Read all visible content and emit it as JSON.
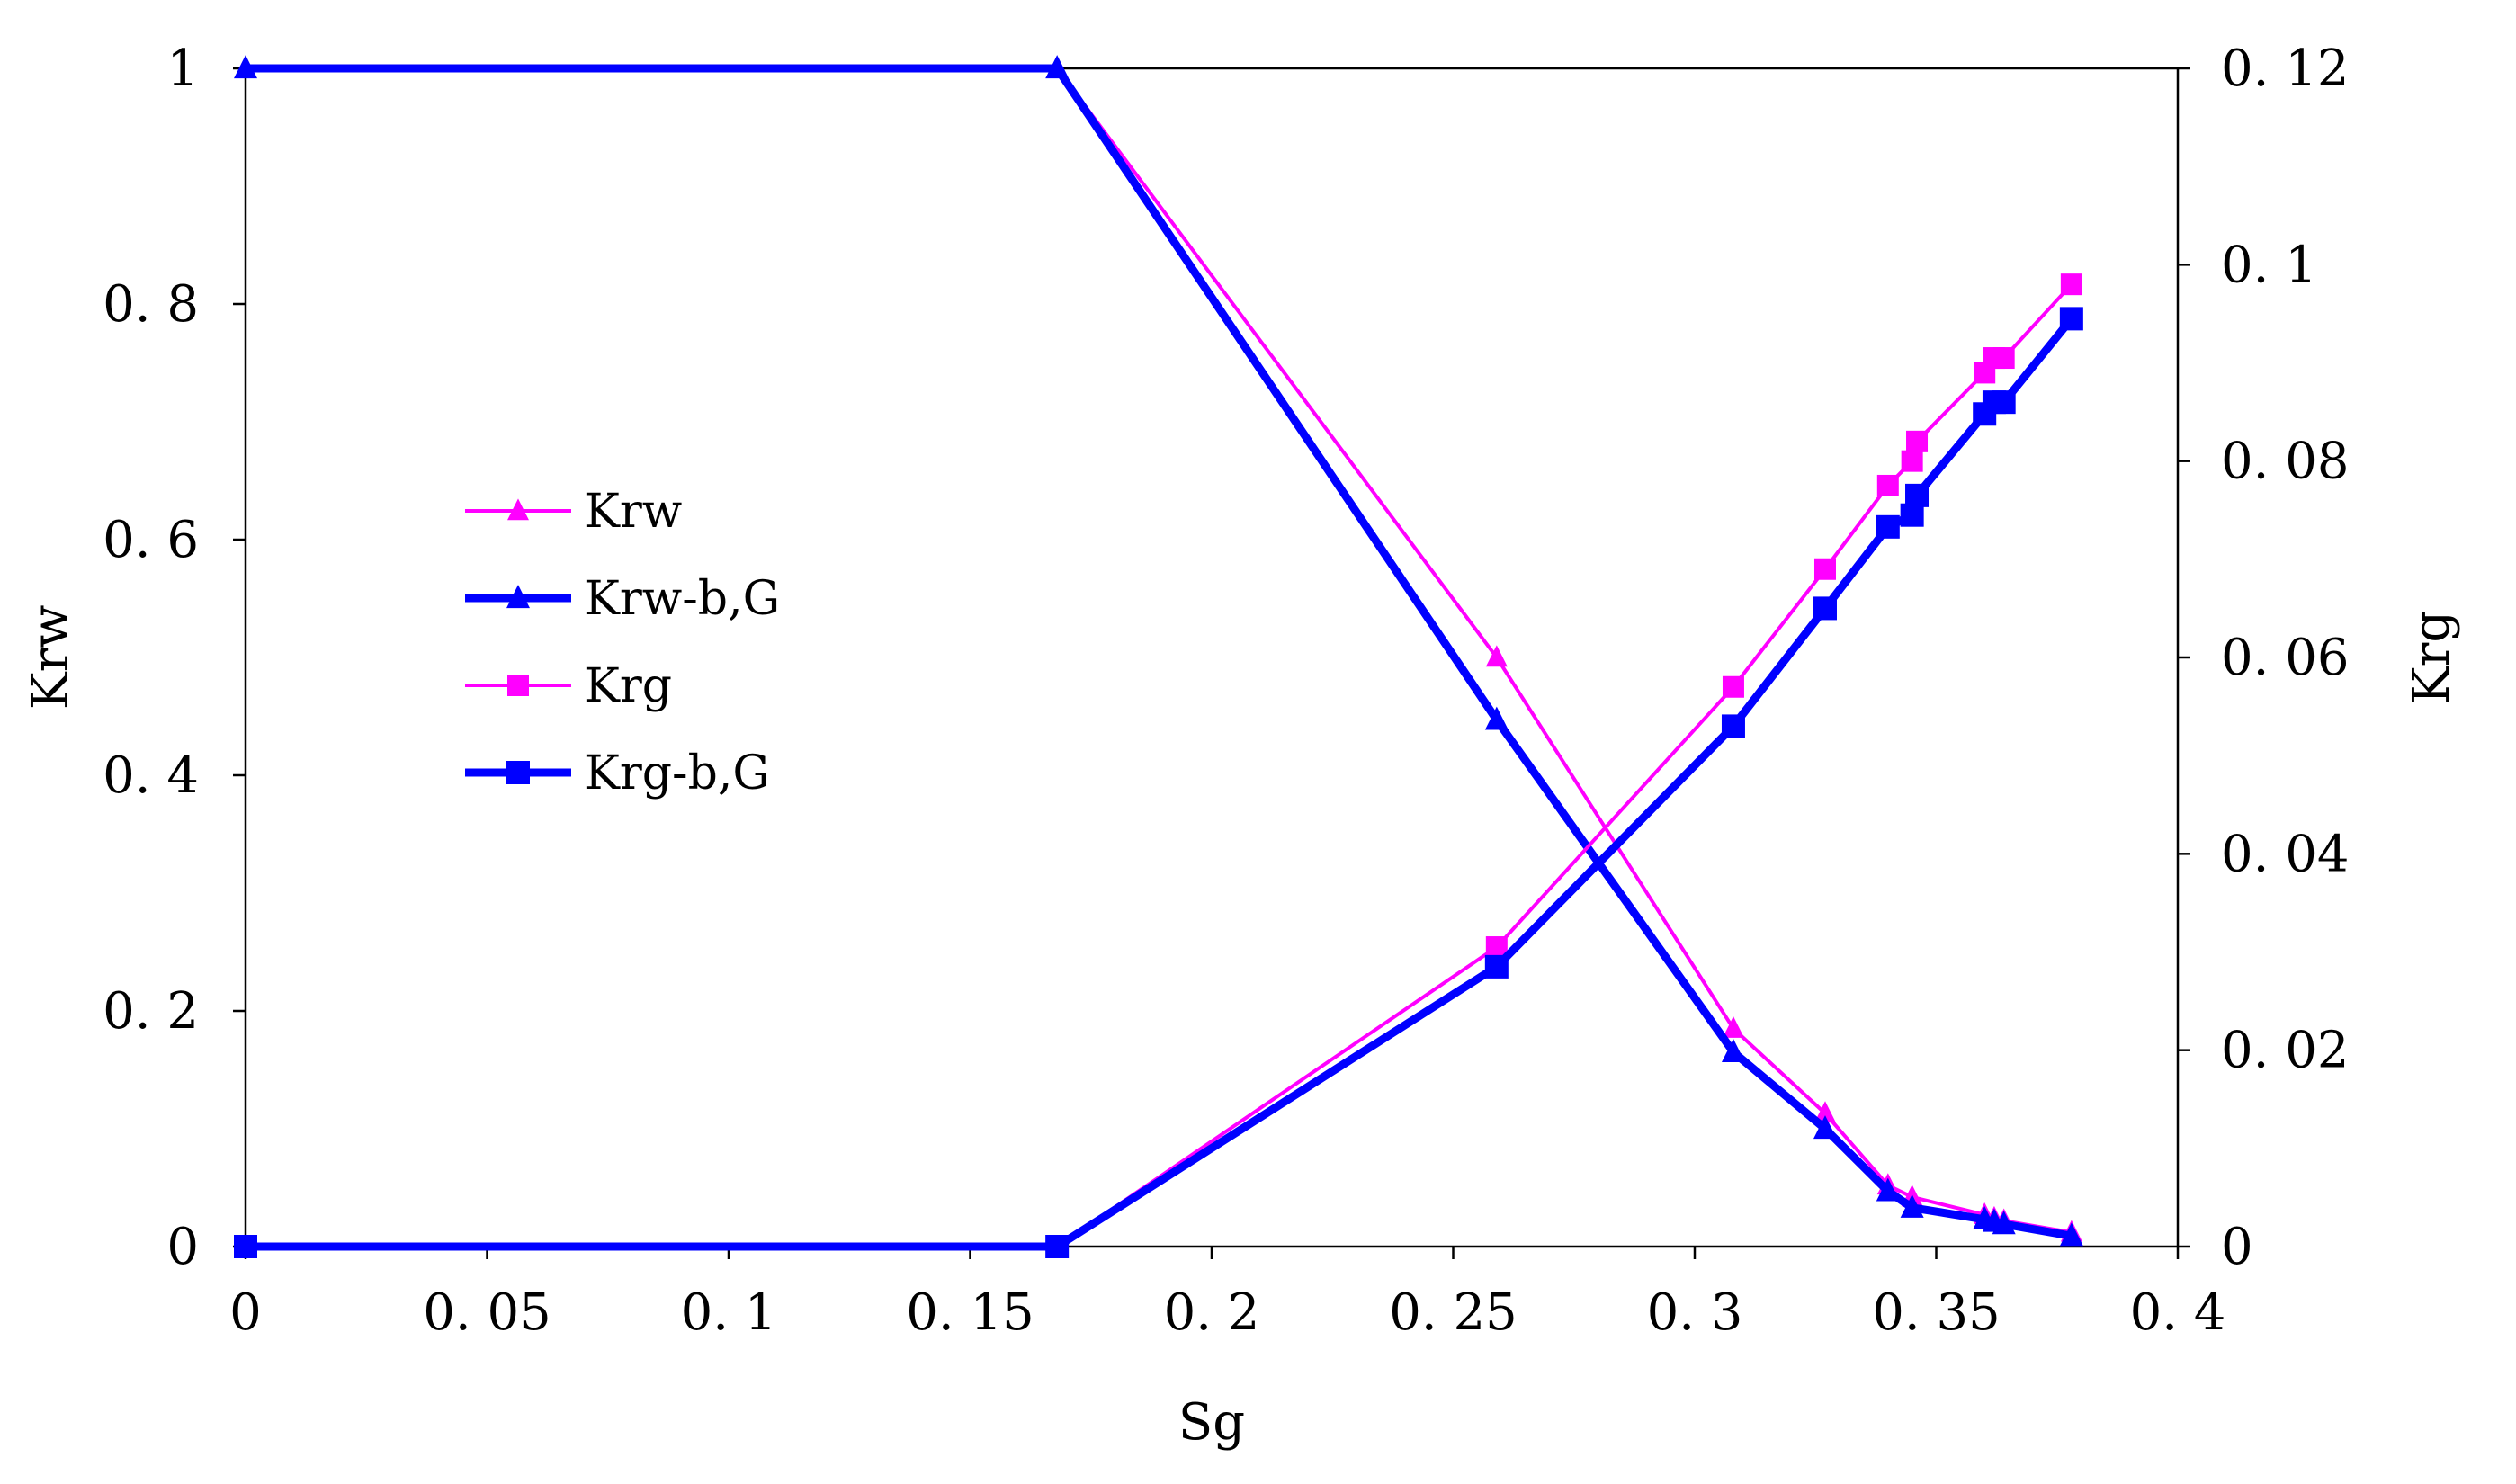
{
  "chart_data": {
    "type": "line",
    "xlabel": "Sg",
    "ylabel": "Krw",
    "y2label": "Krg",
    "xlim": [
      0,
      0.4
    ],
    "ylim": [
      0,
      1
    ],
    "y2lim": [
      0,
      0.12
    ],
    "x_ticks": [
      "0",
      "0. 05",
      "0. 1",
      "0. 15",
      "0. 2",
      "0. 25",
      "0. 3",
      "0. 35",
      "0. 4"
    ],
    "y_ticks": [
      "0",
      "0. 2",
      "0. 4",
      "0. 6",
      "0. 8",
      "1"
    ],
    "y2_ticks": [
      "0",
      "0. 02",
      "0. 04",
      "0. 06",
      "0. 08",
      "0. 1",
      "0. 12"
    ],
    "grid": false,
    "legend_position": "left-middle",
    "series": [
      {
        "name": "Krw",
        "axis": "left",
        "marker": "triangle",
        "color": "#FF00FF",
        "thick": false,
        "x": [
          0,
          0.168,
          0.259,
          0.308,
          0.327,
          0.34,
          0.345,
          0.36,
          0.362,
          0.364,
          0.378
        ],
        "y": [
          1.0,
          1.0,
          0.5,
          0.185,
          0.113,
          0.052,
          0.042,
          0.027,
          0.024,
          0.022,
          0.012
        ]
      },
      {
        "name": "Krw-b,G",
        "axis": "left",
        "marker": "triangle",
        "color": "#0000FF",
        "thick": true,
        "x": [
          0,
          0.168,
          0.259,
          0.308,
          0.327,
          0.34,
          0.345,
          0.36,
          0.362,
          0.364,
          0.378
        ],
        "y": [
          1.0,
          1.0,
          0.447,
          0.165,
          0.1,
          0.047,
          0.033,
          0.023,
          0.021,
          0.019,
          0.009
        ]
      },
      {
        "name": "Krg",
        "axis": "right",
        "marker": "square",
        "color": "#FF00FF",
        "thick": false,
        "x": [
          0,
          0.168,
          0.259,
          0.308,
          0.327,
          0.34,
          0.345,
          0.346,
          0.36,
          0.362,
          0.364,
          0.378
        ],
        "y": [
          0,
          0,
          0.0305,
          0.057,
          0.069,
          0.0775,
          0.08,
          0.082,
          0.089,
          0.0905,
          0.0905,
          0.098
        ]
      },
      {
        "name": "Krg-b,G",
        "axis": "right",
        "marker": "square",
        "color": "#0000FF",
        "thick": true,
        "x": [
          0,
          0.168,
          0.259,
          0.308,
          0.327,
          0.34,
          0.345,
          0.346,
          0.36,
          0.362,
          0.364,
          0.378
        ],
        "y": [
          0,
          0,
          0.0285,
          0.053,
          0.065,
          0.0733,
          0.0745,
          0.0765,
          0.0848,
          0.086,
          0.086,
          0.0945
        ]
      }
    ]
  }
}
